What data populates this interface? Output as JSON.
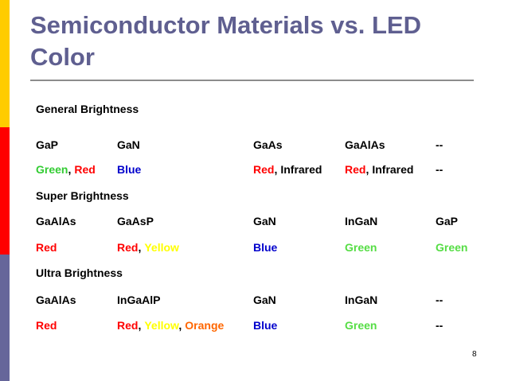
{
  "title": "Semiconductor Materials vs. LED Color",
  "page_number": "8",
  "sections": [
    {
      "heading": "General Brightness",
      "rows": [
        [
          [
            {
              "text": "GaP",
              "color": "#000000"
            }
          ],
          [
            {
              "text": "GaN",
              "color": "#000000"
            }
          ],
          [
            {
              "text": "GaAs",
              "color": "#000000"
            }
          ],
          [
            {
              "text": "GaAlAs",
              "color": "#000000"
            }
          ],
          [
            {
              "text": "--",
              "color": "#000000"
            }
          ]
        ],
        [
          [
            {
              "text": "Green",
              "color": "#33cc33"
            },
            {
              "text": ",",
              "color": "#000000"
            },
            {
              "text": "Red",
              "color": "#ff0000"
            }
          ],
          [
            {
              "text": "Blue",
              "color": "#0000cc"
            }
          ],
          [
            {
              "text": "Red",
              "color": "#ff0000"
            },
            {
              "text": ",",
              "color": "#000000"
            },
            {
              "text": "Infrared",
              "color": "#000000"
            }
          ],
          [
            {
              "text": "Red",
              "color": "#ff0000"
            },
            {
              "text": ",",
              "color": "#000000"
            },
            {
              "text": "Infrared",
              "color": "#000000"
            }
          ],
          [
            {
              "text": "--",
              "color": "#000000"
            }
          ]
        ]
      ]
    },
    {
      "heading": "Super Brightness",
      "rows": [
        [
          [
            {
              "text": "GaAlAs",
              "color": "#000000"
            }
          ],
          [
            {
              "text": "GaAsP",
              "color": "#000000"
            }
          ],
          [
            {
              "text": "GaN",
              "color": "#000000"
            }
          ],
          [
            {
              "text": "InGaN",
              "color": "#000000"
            }
          ],
          [
            {
              "text": "GaP",
              "color": "#000000"
            }
          ]
        ],
        [
          [
            {
              "text": "Red",
              "color": "#ff0000"
            }
          ],
          [
            {
              "text": "Red",
              "color": "#ff0000"
            },
            {
              "text": ",",
              "color": "#000000"
            },
            {
              "text": "Yellow",
              "color": "#ffff00"
            }
          ],
          [
            {
              "text": "Blue",
              "color": "#0000cc"
            }
          ],
          [
            {
              "text": "Green",
              "color": "#55dd44"
            }
          ],
          [
            {
              "text": "Green",
              "color": "#55dd44"
            }
          ]
        ]
      ]
    },
    {
      "heading": "Ultra Brightness",
      "rows": [
        [
          [
            {
              "text": "GaAlAs",
              "color": "#000000"
            }
          ],
          [
            {
              "text": "InGaAlP",
              "color": "#000000"
            }
          ],
          [
            {
              "text": "GaN",
              "color": "#000000"
            }
          ],
          [
            {
              "text": "InGaN",
              "color": "#000000"
            }
          ],
          [
            {
              "text": "--",
              "color": "#000000"
            }
          ]
        ],
        [
          [
            {
              "text": "Red",
              "color": "#ff0000"
            }
          ],
          [
            {
              "text": "Red",
              "color": "#ff0000"
            },
            {
              "text": ",",
              "color": "#000000"
            },
            {
              "text": "Yellow",
              "color": "#ffff00"
            },
            {
              "text": ",",
              "color": "#000000"
            },
            {
              "text": "Orange",
              "color": "#ff6600"
            }
          ],
          [
            {
              "text": "Blue",
              "color": "#0000cc"
            }
          ],
          [
            {
              "text": "Green",
              "color": "#55dd44"
            }
          ],
          [
            {
              "text": "--",
              "color": "#000000"
            }
          ]
        ]
      ]
    }
  ]
}
